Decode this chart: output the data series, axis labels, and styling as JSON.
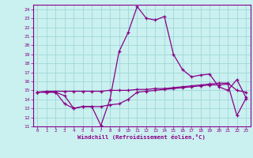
{
  "xlabel": "Windchill (Refroidissement éolien,°C)",
  "bg_color": "#caf0f0",
  "grid_color": "#a0d8d8",
  "line_color": "#880088",
  "x": [
    0,
    1,
    2,
    3,
    4,
    5,
    6,
    7,
    8,
    9,
    10,
    11,
    12,
    13,
    14,
    15,
    16,
    17,
    18,
    19,
    20,
    21,
    22,
    23
  ],
  "series1": [
    14.8,
    14.8,
    14.8,
    14.4,
    13.0,
    13.2,
    13.2,
    11.1,
    14.0,
    19.3,
    21.4,
    24.3,
    23.0,
    22.8,
    23.2,
    19.0,
    17.3,
    16.5,
    16.7,
    16.8,
    15.4,
    15.0,
    16.2,
    14.2
  ],
  "series2": [
    14.8,
    14.9,
    14.9,
    14.9,
    14.9,
    14.9,
    14.9,
    14.9,
    15.0,
    15.0,
    15.0,
    15.1,
    15.1,
    15.2,
    15.2,
    15.3,
    15.4,
    15.5,
    15.6,
    15.7,
    15.8,
    15.8,
    15.0,
    14.8
  ],
  "series3": [
    14.8,
    14.8,
    14.8,
    13.5,
    13.0,
    13.2,
    13.2,
    13.2,
    13.4,
    13.5,
    14.0,
    14.8,
    14.9,
    15.0,
    15.1,
    15.2,
    15.3,
    15.4,
    15.5,
    15.6,
    15.6,
    15.7,
    12.2,
    14.1
  ],
  "ylim": [
    11,
    24.5
  ],
  "yticks": [
    11,
    12,
    13,
    14,
    15,
    16,
    17,
    18,
    19,
    20,
    21,
    22,
    23,
    24
  ],
  "xticks": [
    0,
    1,
    2,
    3,
    4,
    5,
    6,
    7,
    8,
    9,
    10,
    11,
    12,
    13,
    14,
    15,
    16,
    17,
    18,
    19,
    20,
    21,
    22,
    23
  ]
}
